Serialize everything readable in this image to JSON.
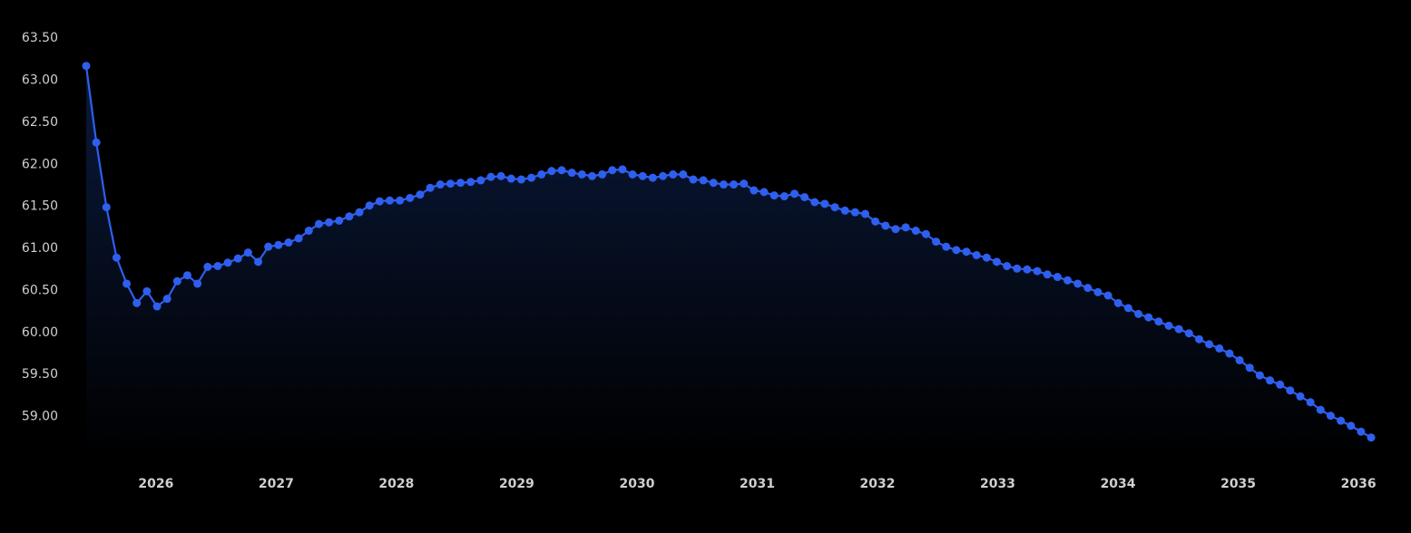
{
  "colors": {
    "background": "#000000",
    "line": "#2f5fef",
    "marker": "#2f5fef",
    "area_top": "#0a1a3c",
    "area_bottom": "#000000",
    "tick_label": "#cfcfcf"
  },
  "chart_data": {
    "type": "line",
    "title": "",
    "xlabel": "",
    "ylabel": "",
    "grid": false,
    "legend": "none",
    "area_fill": true,
    "markers": true,
    "x_unit": "year",
    "ylim": [
      58.5,
      63.75
    ],
    "xlim": [
      2025.42,
      2036.12
    ],
    "y_ticks": [
      59.0,
      59.5,
      60.0,
      60.5,
      61.0,
      61.5,
      62.0,
      62.5,
      63.0,
      63.5
    ],
    "y_tick_labels": [
      "59.00",
      "59.50",
      "60.00",
      "60.50",
      "61.00",
      "61.50",
      "62.00",
      "62.50",
      "63.00",
      "63.50"
    ],
    "x_ticks": [
      2026,
      2027,
      2028,
      2029,
      2030,
      2031,
      2032,
      2033,
      2034,
      2035,
      2036
    ],
    "x_tick_labels": [
      "2026",
      "2027",
      "2028",
      "2029",
      "2030",
      "2031",
      "2032",
      "2033",
      "2034",
      "2035",
      "2036"
    ],
    "series": [
      {
        "values": [
          63.16,
          62.25,
          61.48,
          60.88,
          60.57,
          60.34,
          60.48,
          60.3,
          60.39,
          60.6,
          60.67,
          60.57,
          60.77,
          60.78,
          60.82,
          60.87,
          60.94,
          60.83,
          61.01,
          61.03,
          61.06,
          61.11,
          61.2,
          61.28,
          61.3,
          61.32,
          61.37,
          61.42,
          61.5,
          61.55,
          61.56,
          61.56,
          61.59,
          61.63,
          61.71,
          61.75,
          61.76,
          61.77,
          61.78,
          61.8,
          61.84,
          61.85,
          61.82,
          61.81,
          61.83,
          61.87,
          61.91,
          61.92,
          61.89,
          61.87,
          61.85,
          61.87,
          61.92,
          61.93,
          61.87,
          61.85,
          61.83,
          61.85,
          61.87,
          61.87,
          61.81,
          61.8,
          61.77,
          61.75,
          61.75,
          61.76,
          61.68,
          61.66,
          61.62,
          61.61,
          61.64,
          61.6,
          61.54,
          61.52,
          61.48,
          61.44,
          61.42,
          61.4,
          61.31,
          61.26,
          61.22,
          61.24,
          61.2,
          61.16,
          61.07,
          61.01,
          60.97,
          60.95,
          60.91,
          60.88,
          60.83,
          60.78,
          60.75,
          60.74,
          60.72,
          60.68,
          60.65,
          60.61,
          60.57,
          60.52,
          60.47,
          60.43,
          60.34,
          60.28,
          60.21,
          60.17,
          60.12,
          60.07,
          60.03,
          59.98,
          59.91,
          59.85,
          59.8,
          59.74,
          59.66,
          59.57,
          59.48,
          59.42,
          59.37,
          59.3,
          59.23,
          59.16,
          59.07,
          59.0,
          58.94,
          58.88,
          58.81,
          58.74
        ]
      }
    ]
  }
}
